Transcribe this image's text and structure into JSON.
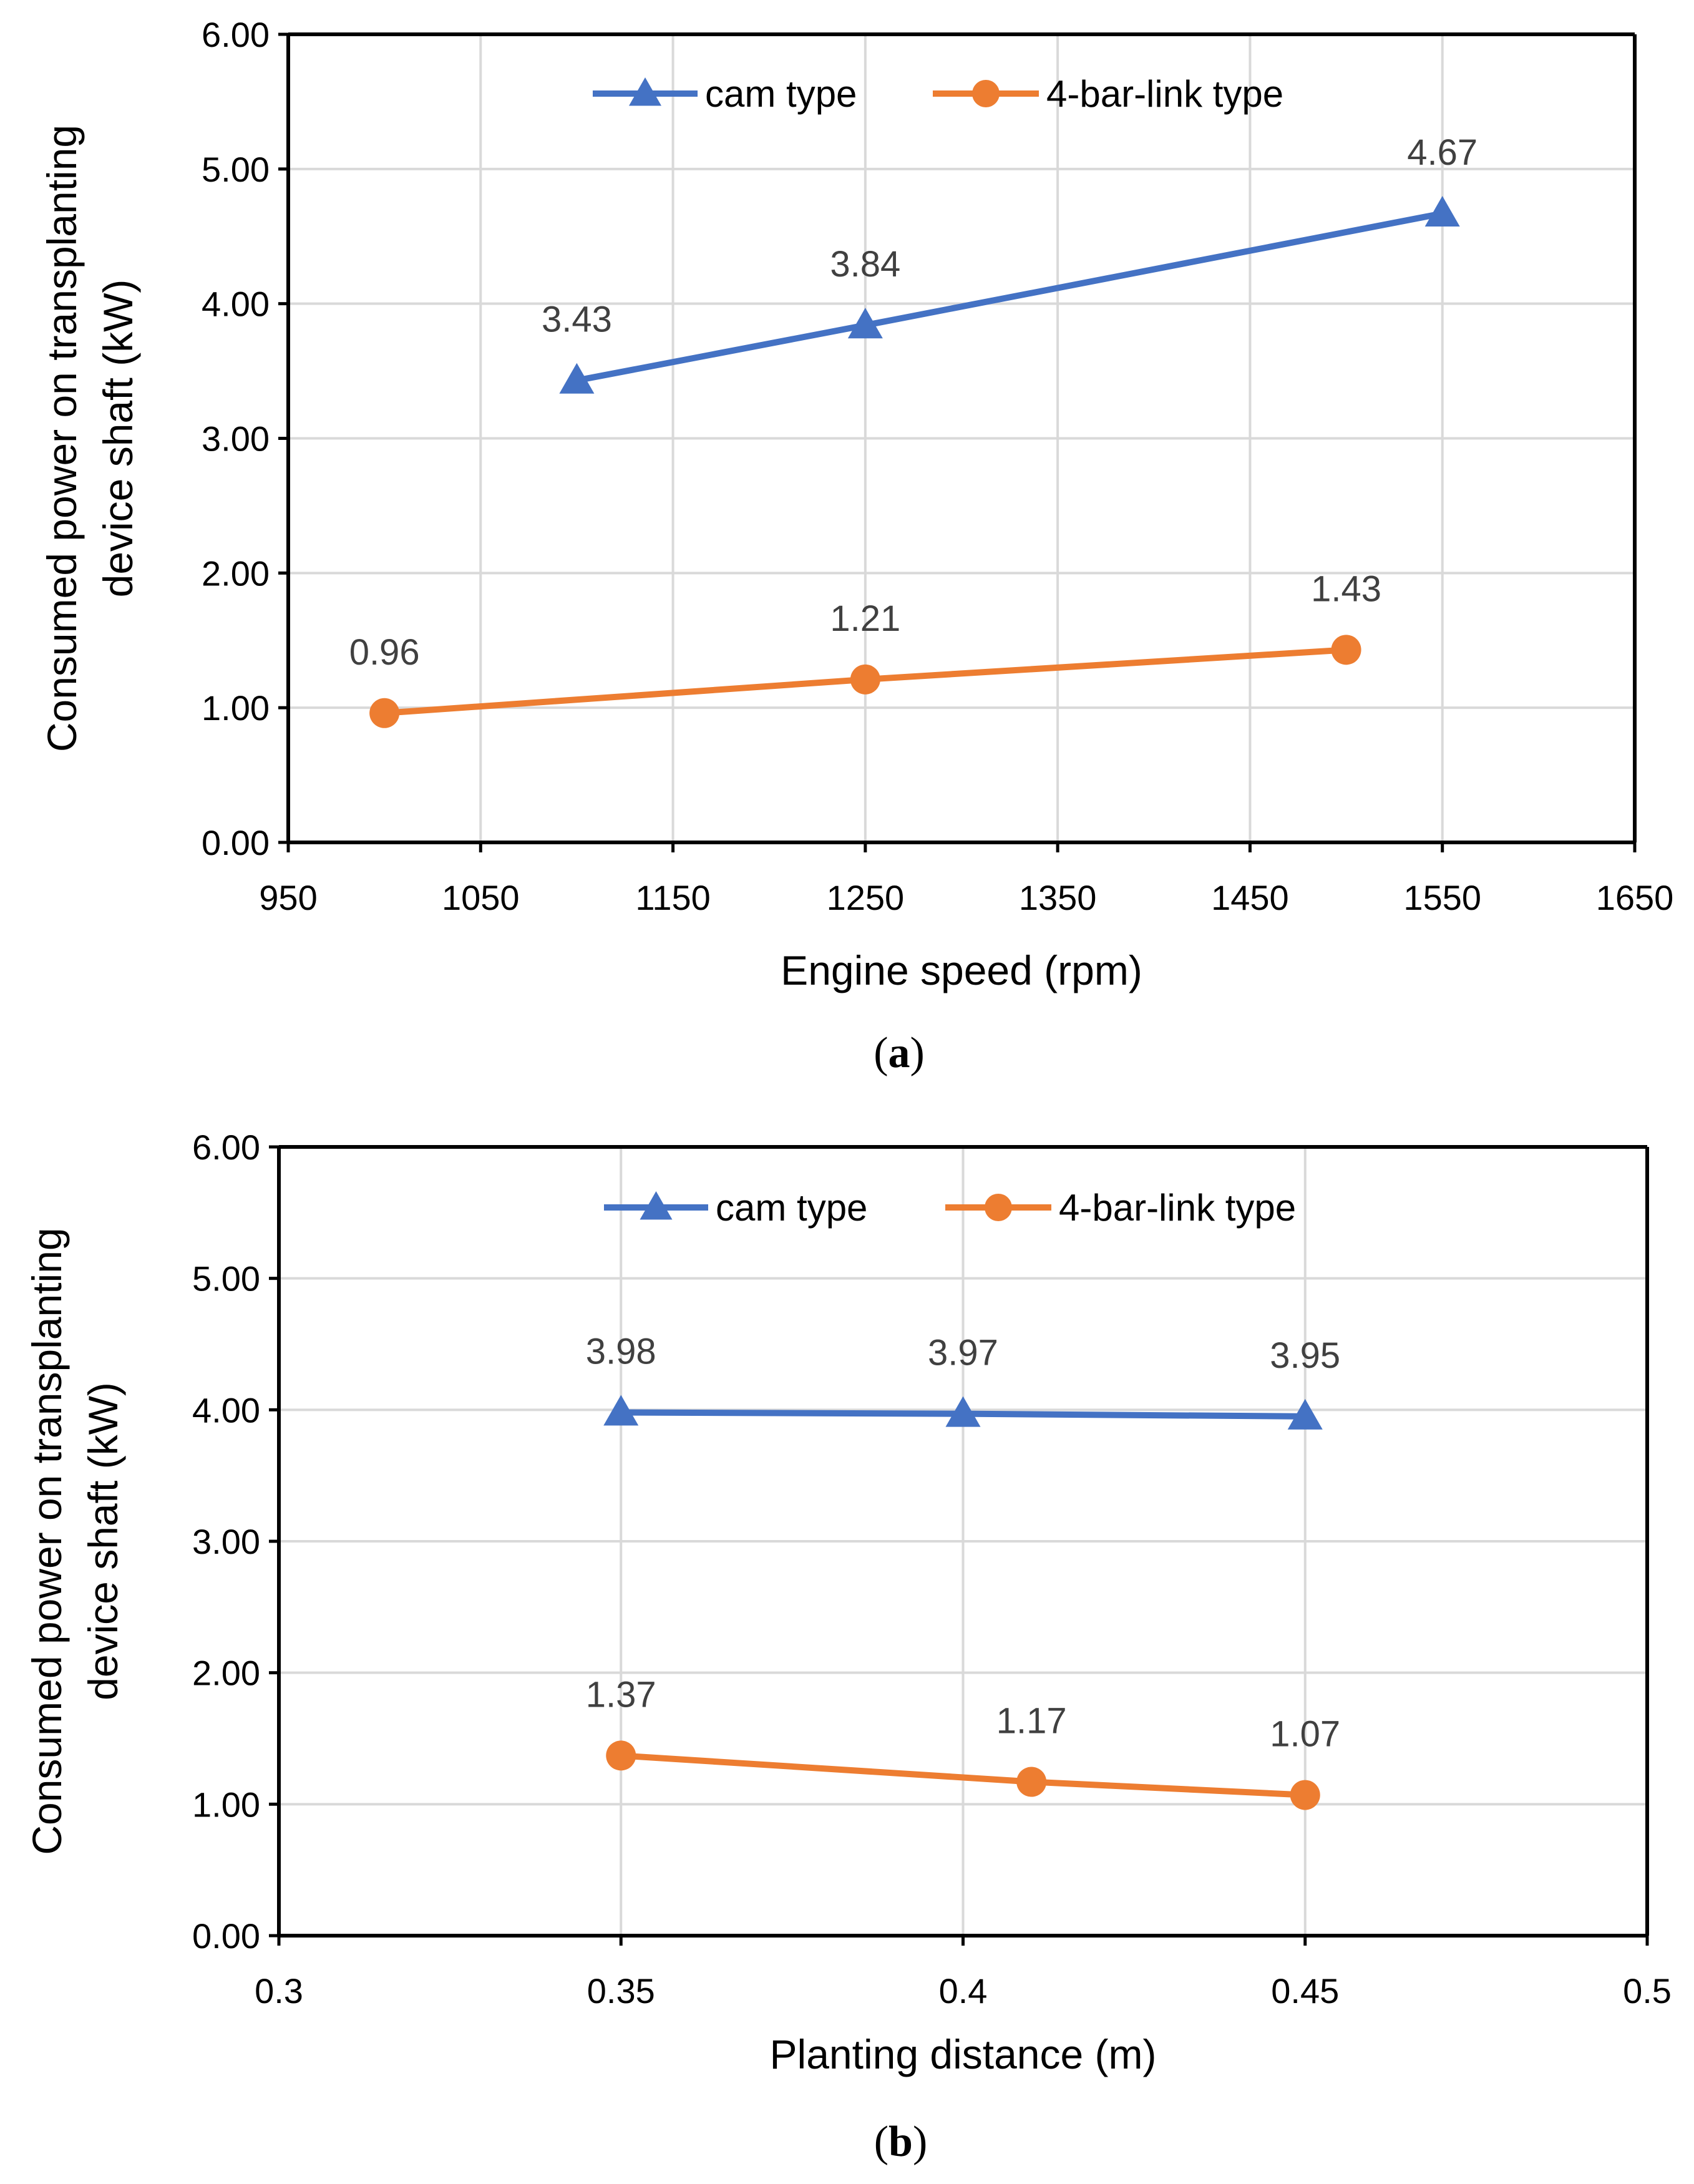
{
  "chart_data": [
    {
      "type": "line",
      "caption_letter": "a",
      "xlabel": "Engine speed (rpm)",
      "ylabel": "Consumed power on transplanting device shaft (kW)",
      "ylabel_lines": [
        "Consumed power on transplanting",
        "device shaft (kW)"
      ],
      "xlim": [
        950,
        1650
      ],
      "ylim": [
        0,
        6
      ],
      "x_ticks": [
        950,
        1050,
        1150,
        1250,
        1350,
        1450,
        1550,
        1650
      ],
      "x_tick_labels": [
        "950",
        "1050",
        "1150",
        "1250",
        "1350",
        "1450",
        "1550",
        "1650"
      ],
      "y_ticks": [
        0,
        1,
        2,
        3,
        4,
        5,
        6
      ],
      "y_tick_labels": [
        "0.00",
        "1.00",
        "2.00",
        "3.00",
        "4.00",
        "5.00",
        "6.00"
      ],
      "grid": true,
      "legend_position": "top",
      "series": [
        {
          "name": "cam type",
          "color": "#4472C4",
          "marker": "triangle",
          "x": [
            1100,
            1250,
            1550
          ],
          "y": [
            3.43,
            3.84,
            4.67
          ],
          "labels": [
            "3.43",
            "3.84",
            "4.67"
          ]
        },
        {
          "name": "4-bar-link type",
          "color": "#ED7D31",
          "marker": "circle",
          "x": [
            1000,
            1250,
            1500
          ],
          "y": [
            0.96,
            1.21,
            1.43
          ],
          "labels": [
            "0.96",
            "1.21",
            "1.43"
          ]
        }
      ]
    },
    {
      "type": "line",
      "caption_letter": "b",
      "xlabel": "Planting distance (m)",
      "ylabel": "Consumed power on transplanting device shaft (kW)",
      "ylabel_lines": [
        "Consumed power on transplanting",
        "device shaft (kW)"
      ],
      "xlim": [
        0.3,
        0.5
      ],
      "ylim": [
        0,
        6
      ],
      "x_ticks": [
        0.3,
        0.35,
        0.4,
        0.45,
        0.5
      ],
      "x_tick_labels": [
        "0.3",
        "0.35",
        "0.4",
        "0.45",
        "0.5"
      ],
      "y_ticks": [
        0,
        1,
        2,
        3,
        4,
        5,
        6
      ],
      "y_tick_labels": [
        "0.00",
        "1.00",
        "2.00",
        "3.00",
        "4.00",
        "5.00",
        "6.00"
      ],
      "grid": true,
      "legend_position": "top",
      "series": [
        {
          "name": "cam type",
          "color": "#4472C4",
          "marker": "triangle",
          "x": [
            0.35,
            0.4,
            0.45
          ],
          "y": [
            3.98,
            3.97,
            3.95
          ],
          "labels": [
            "3.98",
            "3.97",
            "3.95"
          ]
        },
        {
          "name": "4-bar-link type",
          "color": "#ED7D31",
          "marker": "circle",
          "x": [
            0.35,
            0.41,
            0.45
          ],
          "y": [
            1.37,
            1.17,
            1.07
          ],
          "labels": [
            "1.37",
            "1.17",
            "1.07"
          ]
        }
      ]
    }
  ]
}
